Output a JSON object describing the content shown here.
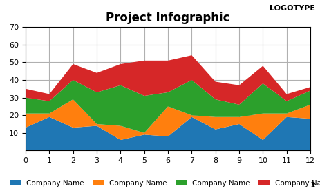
{
  "chart_data": {
    "type": "area",
    "title": "Project Infographic",
    "x": [
      0,
      1,
      2,
      3,
      4,
      5,
      6,
      7,
      8,
      9,
      10,
      11,
      12
    ],
    "series": [
      {
        "name": "Company Name",
        "values": [
          13,
          19,
          13,
          14,
          6,
          9,
          8,
          19,
          12,
          15,
          6,
          19,
          18
        ]
      },
      {
        "name": "Company Name",
        "values": [
          8,
          2,
          16,
          1,
          8,
          1,
          17,
          1,
          7,
          4,
          15,
          2,
          8
        ]
      },
      {
        "name": "Company Name",
        "values": [
          9,
          7,
          11,
          18,
          23,
          21,
          8,
          20,
          10,
          7,
          17,
          7,
          8
        ]
      },
      {
        "name": "Company Name",
        "values": [
          5,
          4,
          9,
          11,
          12,
          20,
          18,
          14,
          10,
          11,
          10,
          4,
          2
        ]
      }
    ],
    "stacked": true,
    "xlim": [
      0,
      12
    ],
    "xticks": [
      0,
      1,
      2,
      3,
      4,
      5,
      6,
      7,
      8,
      9,
      10,
      11,
      12
    ],
    "ylim": [
      0,
      70
    ],
    "yticks": [
      10,
      20,
      30,
      40,
      50,
      60,
      70
    ],
    "grid": true,
    "legend": "lower left",
    "annotations": [
      "LOGOTYPE",
      "1"
    ]
  }
}
